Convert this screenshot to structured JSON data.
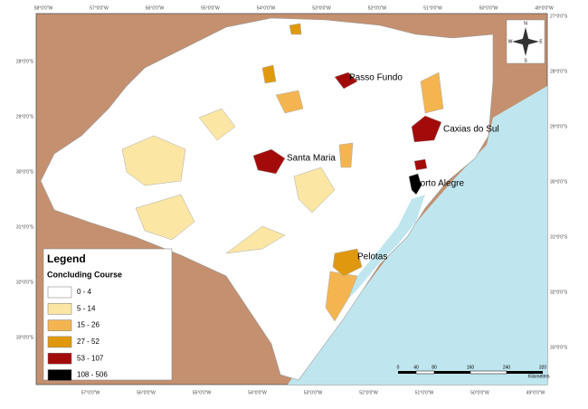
{
  "legend": {
    "title": "Legend",
    "subtitle": "Concluding Course",
    "classes": [
      {
        "label": "0 - 4",
        "color": "#ffffff"
      },
      {
        "label": "5 - 14",
        "color": "#fbe6a4"
      },
      {
        "label": "15 - 26",
        "color": "#f4b550"
      },
      {
        "label": "27 - 52",
        "color": "#e0990f"
      },
      {
        "label": "53 - 107",
        "color": "#a30b0b"
      },
      {
        "label": "108 - 506",
        "color": "#000000"
      }
    ]
  },
  "cities": [
    "Passo Fundo",
    "Caxias do Sul",
    "Santa Maria",
    "Porto Alegre",
    "Pelotas"
  ],
  "compass": [
    "N",
    "W",
    "E",
    "S"
  ],
  "scale": {
    "ticks": [
      "0",
      "40",
      "80",
      "160",
      "240",
      "320"
    ],
    "unit": "Kilometers"
  },
  "top_labels": [
    "58°0'0\"W",
    "57°0'0\"W",
    "56°0'0\"W",
    "55°0'0\"W",
    "54°0'0\"W",
    "53°0'0\"W",
    "52°0'0\"W",
    "51°0'0\"W",
    "50°0'0\"W",
    "49°0'0\"W"
  ],
  "bottom_labels": [
    "57°0'0\"W",
    "56°0'0\"W",
    "55°0'0\"W",
    "54°0'0\"W",
    "53°0'0\"W",
    "52°0'0\"W",
    "51°0'0\"W",
    "50°0'0\"W",
    "49°0'0\"W"
  ],
  "left_labels": [
    "28°0'0\"S",
    "29°0'0\"S",
    "30°0'0\"S",
    "31°0'0\"S",
    "32°0'0\"S",
    "33°0'0\"S"
  ],
  "right_labels": [
    "27°0'0\"S",
    "28°0'0\"S",
    "29°0'0\"S",
    "30°0'0\"S",
    "31°0'0\"S",
    "32°0'0\"S",
    "33°0'0\"S"
  ]
}
